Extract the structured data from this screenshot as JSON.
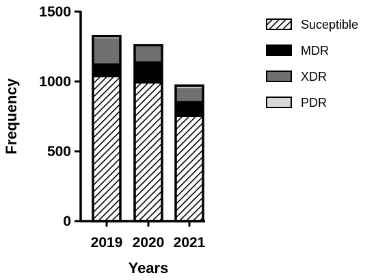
{
  "chart_data": {
    "type": "bar",
    "stacked": true,
    "categories": [
      "2019",
      "2020",
      "2021"
    ],
    "series": [
      {
        "name": "Suceptible",
        "values": [
          1030,
          985,
          745
        ],
        "color": "#ffffff",
        "pattern": "diagonal-hatch"
      },
      {
        "name": "MDR",
        "values": [
          100,
          160,
          115
        ],
        "color": "#000000",
        "pattern": "solid"
      },
      {
        "name": "XDR",
        "values": [
          180,
          105,
          95
        ],
        "color": "#707070",
        "pattern": "solid"
      },
      {
        "name": "PDR",
        "values": [
          15,
          10,
          15
        ],
        "color": "#d8d8d8",
        "pattern": "solid"
      }
    ],
    "xlabel": "Years",
    "ylabel": "Frequency",
    "ylim": [
      0,
      1500
    ],
    "yticks": [
      0,
      500,
      1000,
      1500
    ],
    "legend_position": "right",
    "grid": false
  }
}
